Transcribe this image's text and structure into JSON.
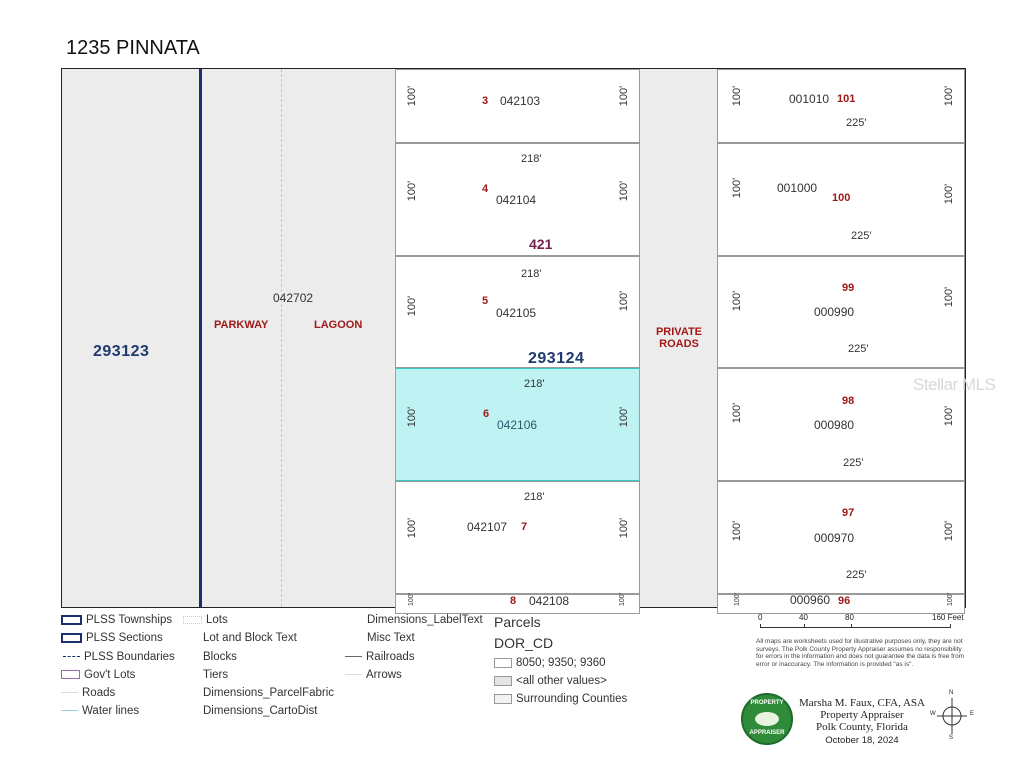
{
  "title": "1235 PINNATA",
  "map": {
    "sections": {
      "west": "293123",
      "main": "293124"
    },
    "block": "421",
    "parcel_strip_id": "042702",
    "road_labels": {
      "parkway": "PARKWAY",
      "lagoon": "LAGOON",
      "private_roads": "PRIVATE ROADS"
    },
    "left_lots": [
      {
        "lot": "3",
        "parcel": "042103",
        "width": "",
        "left": "100'",
        "right": "100'"
      },
      {
        "lot": "4",
        "parcel": "042104",
        "width": "218'",
        "left": "100'",
        "right": "100'"
      },
      {
        "lot": "5",
        "parcel": "042105",
        "width": "218'",
        "left": "100'",
        "right": "100'"
      },
      {
        "lot": "6",
        "parcel": "042106",
        "width": "218'",
        "left": "100'",
        "right": "100'",
        "selected": true
      },
      {
        "lot": "7",
        "parcel": "042107",
        "width": "218'",
        "left": "100'",
        "right": "100'"
      },
      {
        "lot": "8",
        "parcel": "042108",
        "width": "",
        "left": "100'",
        "right": "100'"
      }
    ],
    "right_lots": [
      {
        "lot": "101",
        "parcel": "001010",
        "depth": "225'",
        "left": "100'",
        "right": "100'"
      },
      {
        "lot": "100",
        "parcel": "001000",
        "depth": "225'",
        "left": "100'",
        "right": "100'"
      },
      {
        "lot": "99",
        "parcel": "000990",
        "depth": "225'",
        "left": "100'",
        "right": "100'"
      },
      {
        "lot": "98",
        "parcel": "000980",
        "depth": "225'",
        "left": "100'",
        "right": "100'"
      },
      {
        "lot": "97",
        "parcel": "000970",
        "depth": "225'",
        "left": "100'",
        "right": "100'"
      },
      {
        "lot": "96",
        "parcel": "000960",
        "depth": "",
        "left": "100'",
        "right": "100'"
      }
    ]
  },
  "watermark": "Stellar MLS",
  "legend": {
    "col1": [
      "PLSS Townships",
      "PLSS Sections",
      "PLSS Boundaries",
      "Gov't Lots",
      "Roads",
      "Water lines"
    ],
    "col2": [
      "Lots",
      "Lot and Block Text",
      "Blocks",
      "Tiers",
      "Dimensions_ParcelFabric",
      "Dimensions_CartoDist"
    ],
    "col3": [
      "Dimensions_LabelText",
      "Misc Text",
      "Railroads",
      "Arrows"
    ],
    "parcels_title": "Parcels",
    "dor_title": "DOR_CD",
    "parcel_classes": [
      "8050; 9350; 9360",
      "<all other values>",
      "Surrounding Counties"
    ]
  },
  "scale": {
    "ticks": [
      "0",
      "40",
      "80",
      "160 Feet"
    ]
  },
  "disclaimer": "All maps are worksheets used for illustrative purposes only, they are not surveys. The Polk County Property Appraiser assumes no responsibility for errors in the information and does not guarantee the data is free from error or inaccuracy. The information is provided \"as is\".",
  "appraiser": {
    "seal_top": "PROPERTY",
    "seal_bottom": "APPRAISER",
    "name": "Marsha M. Faux, CFA, ASA",
    "role": "Property Appraiser",
    "county": "Polk County, Florida",
    "date": "October 18, 2024"
  },
  "compass": {
    "n": "N",
    "s": "S",
    "e": "E",
    "w": "W"
  }
}
